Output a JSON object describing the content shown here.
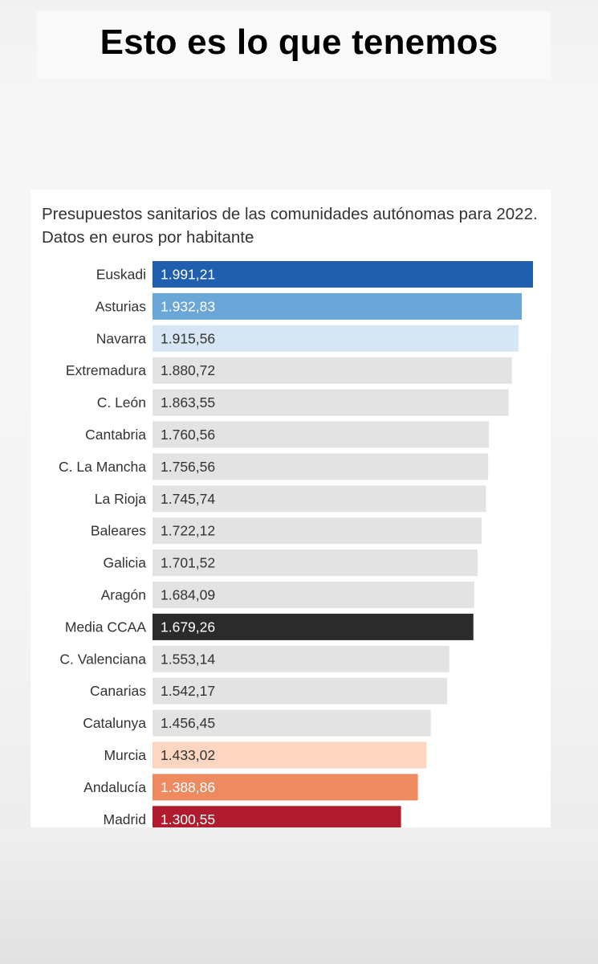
{
  "headline": "Esto es lo que tenemos",
  "chart_data": {
    "type": "bar",
    "orientation": "horizontal",
    "title": "Presupuestos sanitarios de las comunidades autónomas para 2022. Datos en euros por habitante",
    "xlabel": "",
    "ylabel": "",
    "grid": false,
    "categories": [
      "Euskadi",
      "Asturias",
      "Navarra",
      "Extremadura",
      "C. León",
      "Cantabria",
      "C. La Mancha",
      "La Rioja",
      "Baleares",
      "Galicia",
      "Aragón",
      "Media CCAA",
      "C. Valenciana",
      "Canarias",
      "Catalunya",
      "Murcia",
      "Andalucía",
      "Madrid"
    ],
    "values": [
      1991.21,
      1932.83,
      1915.56,
      1880.72,
      1863.55,
      1760.56,
      1756.56,
      1745.74,
      1722.12,
      1701.52,
      1684.09,
      1679.26,
      1553.14,
      1542.17,
      1456.45,
      1433.02,
      1388.86,
      1300.55
    ],
    "value_labels": [
      "1.991,21",
      "1.932,83",
      "1.915,56",
      "1.880,72",
      "1.863,55",
      "1.760,56",
      "1.756,56",
      "1.745,74",
      "1.722,12",
      "1.701,52",
      "1.684,09",
      "1.679,26",
      "1.553,14",
      "1.542,17",
      "1.456,45",
      "1.433,02",
      "1.388,86",
      "1.300,55"
    ],
    "colors": [
      "#1f5fae",
      "#6aa7d8",
      "#d6e6f4",
      "#e3e3e3",
      "#e3e3e3",
      "#e3e3e3",
      "#e3e3e3",
      "#e3e3e3",
      "#e3e3e3",
      "#e3e3e3",
      "#e3e3e3",
      "#2b2b2b",
      "#e3e3e3",
      "#e3e3e3",
      "#e3e3e3",
      "#fcd6c0",
      "#ee8a60",
      "#b01c2e"
    ],
    "label_colors": [
      "#ffffff",
      "#ffffff",
      "#333333",
      "#333333",
      "#333333",
      "#333333",
      "#333333",
      "#333333",
      "#333333",
      "#333333",
      "#333333",
      "#ffffff",
      "#333333",
      "#333333",
      "#333333",
      "#333333",
      "#ffffff",
      "#ffffff"
    ]
  }
}
